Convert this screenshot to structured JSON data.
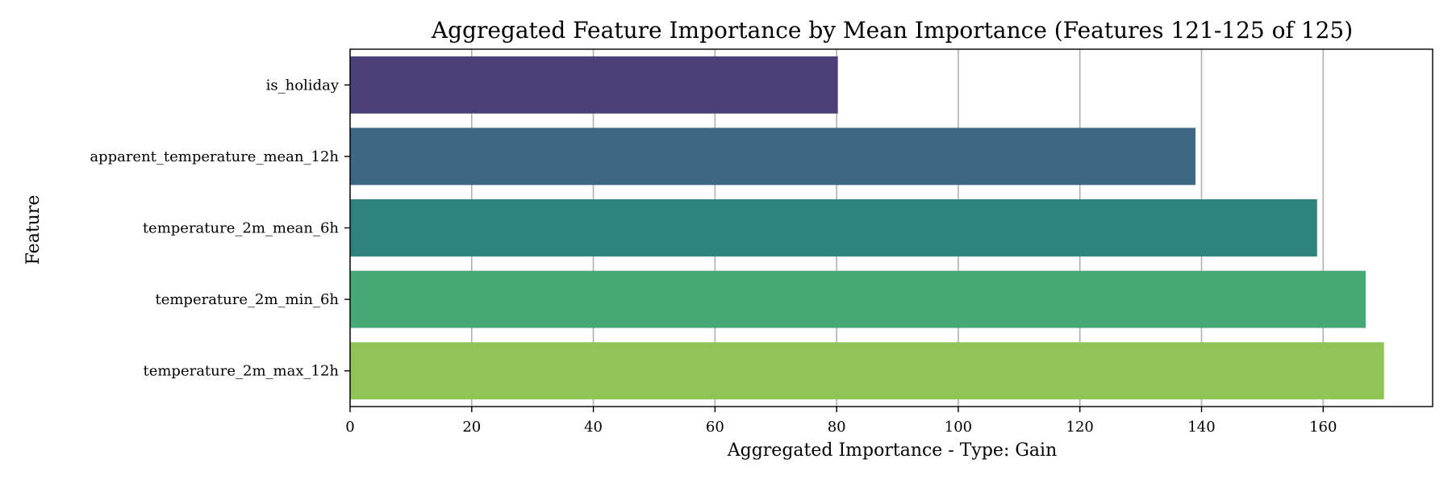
{
  "chart_data": {
    "type": "bar",
    "orientation": "horizontal",
    "title": "Aggregated Feature Importance by Mean Importance (Features 121-125 of 125)",
    "xlabel": "Aggregated Importance - Type: Gain",
    "ylabel": "Feature",
    "categories": [
      "is_holiday",
      "apparent_temperature_mean_12h",
      "temperature_2m_mean_6h",
      "temperature_2m_min_6h",
      "temperature_2m_max_12h"
    ],
    "values": [
      80.2,
      139.0,
      159.0,
      167.0,
      170.0
    ],
    "colors": [
      "#4b4178",
      "#3d6782",
      "#2e837e",
      "#47a877",
      "#8fc557"
    ],
    "xlim": [
      0,
      178
    ],
    "xticks": [
      0,
      20,
      40,
      60,
      80,
      100,
      120,
      140,
      160
    ],
    "xtick_labels": [
      "0",
      "20",
      "40",
      "60",
      "80",
      "100",
      "120",
      "140",
      "160"
    ],
    "grid": "vertical",
    "legend": "none"
  }
}
